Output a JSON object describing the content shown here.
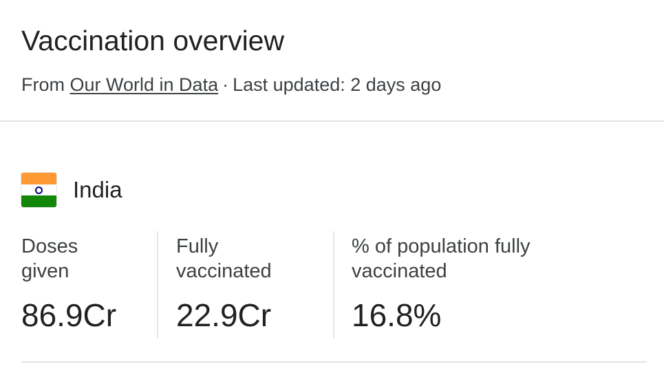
{
  "header": {
    "title": "Vaccination overview",
    "source_prefix": "From",
    "source_link": "Our World in Data",
    "separator": "·",
    "last_updated": "Last updated: 2 days ago"
  },
  "country": {
    "flag_icon": "india-flag-icon",
    "name": "India"
  },
  "stats": [
    {
      "label_line1": "Doses",
      "label_line2": "given",
      "value": "86.9Cr"
    },
    {
      "label_line1": "Fully",
      "label_line2": "vaccinated",
      "value": "22.9Cr"
    },
    {
      "label_line1": "% of population fully",
      "label_line2": "vaccinated",
      "value": "16.8%"
    }
  ],
  "colors": {
    "text_primary": "#202124",
    "text_secondary": "#3c4043",
    "divider": "#e3e3e3",
    "flag_saffron": "#ff9933",
    "flag_green": "#138808",
    "flag_chakra": "#000080"
  }
}
